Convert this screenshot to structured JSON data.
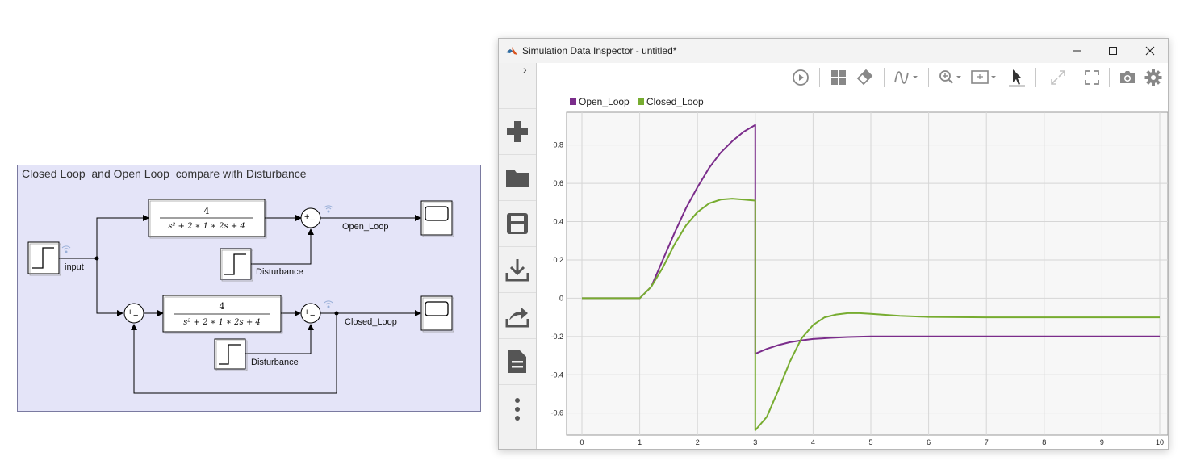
{
  "simulink": {
    "area_title": "Closed Loop  and Open Loop  compare with Disturbance",
    "tf_numerator": "4",
    "tf_denominator": "s² + 2 ∗ 1 ∗ 2s + 4",
    "sum_plus": "+",
    "sum_minus": "−",
    "signals": {
      "input": "input",
      "open_loop": "Open_Loop",
      "closed_loop": "Closed_Loop",
      "disturbance_1": "Disturbance",
      "disturbance_2": "Disturbance"
    }
  },
  "sdi": {
    "window_title": "Simulation Data Inspector - untitled*",
    "sidebar_buttons": [
      "add",
      "open-folder",
      "save",
      "import",
      "export",
      "report",
      "more"
    ],
    "toolbar_icons": [
      "replay",
      "layout-grid",
      "eraser",
      "signal-style",
      "zoom",
      "fit-to-view",
      "cursor",
      "expand",
      "fullscreen",
      "snapshot",
      "settings"
    ]
  },
  "colors": {
    "open_loop": "#7b2d8b",
    "closed_loop": "#77ac30",
    "area_bg": "#e4e4f8"
  },
  "chart_data": {
    "type": "line",
    "title": "",
    "xlabel": "",
    "ylabel": "",
    "xlim": [
      0,
      10
    ],
    "ylim": [
      -0.77,
      0.98
    ],
    "xticks": [
      0,
      1,
      2,
      3,
      4,
      5,
      6,
      7,
      8,
      9,
      10
    ],
    "yticks": [
      -0.6,
      -0.4,
      -0.2,
      0,
      0.2,
      0.4,
      0.6,
      0.8
    ],
    "grid": true,
    "legend_position": "top-left",
    "series": [
      {
        "name": "Open_Loop",
        "color": "#7b2d8b",
        "points": [
          [
            0,
            0
          ],
          [
            1,
            0
          ],
          [
            1.2,
            0.06
          ],
          [
            1.4,
            0.2
          ],
          [
            1.6,
            0.34
          ],
          [
            1.8,
            0.47
          ],
          [
            2,
            0.58
          ],
          [
            2.2,
            0.68
          ],
          [
            2.4,
            0.76
          ],
          [
            2.6,
            0.82
          ],
          [
            2.8,
            0.87
          ],
          [
            3,
            0.905
          ],
          [
            3,
            -0.29
          ],
          [
            3.2,
            -0.265
          ],
          [
            3.4,
            -0.245
          ],
          [
            3.6,
            -0.23
          ],
          [
            3.8,
            -0.22
          ],
          [
            4,
            -0.213
          ],
          [
            4.3,
            -0.207
          ],
          [
            4.6,
            -0.203
          ],
          [
            5,
            -0.2
          ],
          [
            6,
            -0.2
          ],
          [
            8,
            -0.2
          ],
          [
            10,
            -0.2
          ]
        ]
      },
      {
        "name": "Closed_Loop",
        "color": "#77ac30",
        "points": [
          [
            0,
            0
          ],
          [
            1,
            0
          ],
          [
            1.2,
            0.06
          ],
          [
            1.4,
            0.16
          ],
          [
            1.6,
            0.28
          ],
          [
            1.8,
            0.38
          ],
          [
            2,
            0.45
          ],
          [
            2.2,
            0.495
          ],
          [
            2.4,
            0.515
          ],
          [
            2.6,
            0.52
          ],
          [
            2.8,
            0.515
          ],
          [
            3,
            0.51
          ],
          [
            3,
            -0.69
          ],
          [
            3.2,
            -0.62
          ],
          [
            3.4,
            -0.48
          ],
          [
            3.6,
            -0.33
          ],
          [
            3.8,
            -0.21
          ],
          [
            4,
            -0.14
          ],
          [
            4.2,
            -0.1
          ],
          [
            4.4,
            -0.085
          ],
          [
            4.6,
            -0.078
          ],
          [
            4.8,
            -0.078
          ],
          [
            5,
            -0.082
          ],
          [
            5.5,
            -0.092
          ],
          [
            6,
            -0.098
          ],
          [
            7,
            -0.1
          ],
          [
            8,
            -0.1
          ],
          [
            10,
            -0.1
          ]
        ]
      }
    ]
  }
}
